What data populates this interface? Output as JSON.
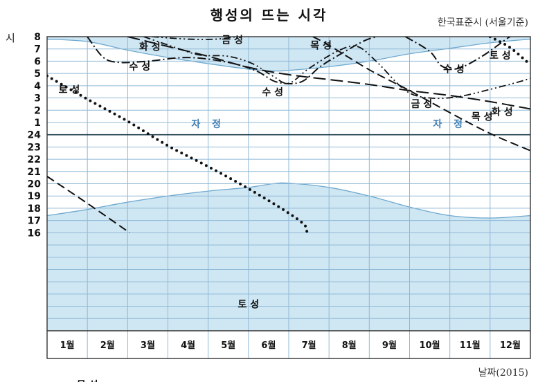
{
  "chart_data": {
    "type": "line",
    "title": "행성의 뜨는 시각",
    "subtitle": "한국표준시 (서울기준)",
    "xlabel": "날짜(2015)",
    "ylabel": "시",
    "x_categories": [
      "1월",
      "2월",
      "3월",
      "4월",
      "5월",
      "6월",
      "7월",
      "8월",
      "9월",
      "10월",
      "11월",
      "12월"
    ],
    "y_ticks": [
      "8",
      "7",
      "6",
      "5",
      "4",
      "3",
      "2",
      "1",
      "24",
      "23",
      "22",
      "21",
      "20",
      "19",
      "18",
      "17",
      "16"
    ],
    "xlim": [
      0,
      12
    ],
    "ylim_hours_from_top": [
      8,
      -16
    ],
    "grid": true,
    "colors": {
      "twilight_fill": "#cfe6f3",
      "twilight_edge": "#6ea9cf",
      "grid": "#8fb9d6",
      "midnight": "#1a3a4a",
      "curves": "#111111"
    },
    "regions": [
      {
        "label": "자 정",
        "positions": [
          4,
          10
        ],
        "y": 0.6
      }
    ],
    "twilight_bands": {
      "morning_edge": [
        [
          0,
          7.8
        ],
        [
          1,
          7.6
        ],
        [
          2,
          6.9
        ],
        [
          3,
          6.3
        ],
        [
          4,
          5.8
        ],
        [
          5,
          5.35
        ],
        [
          5.6,
          5.2
        ],
        [
          6,
          5.25
        ],
        [
          7,
          5.55
        ],
        [
          8,
          6.0
        ],
        [
          9,
          6.6
        ],
        [
          10,
          7.05
        ],
        [
          11,
          7.5
        ],
        [
          12,
          7.8
        ]
      ],
      "evening_edge": [
        [
          0,
          -6.6
        ],
        [
          1,
          -6.1
        ],
        [
          2,
          -5.5
        ],
        [
          3,
          -5.0
        ],
        [
          4,
          -4.6
        ],
        [
          5,
          -4.3
        ],
        [
          5.6,
          -4.0
        ],
        [
          6,
          -3.95
        ],
        [
          7,
          -4.3
        ],
        [
          8,
          -5.0
        ],
        [
          9,
          -5.9
        ],
        [
          10,
          -6.6
        ],
        [
          11,
          -6.8
        ],
        [
          12,
          -6.6
        ]
      ]
    },
    "series": [
      {
        "name": "수성",
        "style": "dash-dot",
        "labels": [
          {
            "text": "수 성",
            "x": 2.3,
            "y": 5.3
          },
          {
            "text": "수 성",
            "x": 5.6,
            "y": 3.2
          },
          {
            "text": "수 성",
            "x": 10.1,
            "y": 5.1
          }
        ],
        "points": [
          [
            1.0,
            8.0
          ],
          [
            1.4,
            6.3
          ],
          [
            1.8,
            5.9
          ],
          [
            2.5,
            6.0
          ],
          [
            3.5,
            6.3
          ],
          [
            4.5,
            5.9
          ],
          [
            5.2,
            5.2
          ],
          [
            5.7,
            4.3
          ],
          [
            6.3,
            4.3
          ],
          [
            6.8,
            5.6
          ],
          [
            7.4,
            6.8
          ],
          [
            7.9,
            7.7
          ],
          [
            8.2,
            8.0
          ]
        ],
        "points2": [
          [
            8.9,
            8.0
          ],
          [
            9.5,
            6.8
          ],
          [
            9.8,
            5.6
          ],
          [
            10.2,
            5.4
          ],
          [
            10.8,
            6.4
          ],
          [
            11.4,
            7.8
          ],
          [
            11.5,
            8.0
          ]
        ]
      },
      {
        "name": "금성",
        "style": "dash-dot-dot",
        "labels": [
          {
            "text": "금 성",
            "x": 4.6,
            "y": 7.45
          },
          {
            "text": "금 성",
            "x": 9.3,
            "y": 2.25
          }
        ],
        "points": [
          [
            2.6,
            8.0
          ],
          [
            3.5,
            7.8
          ],
          [
            4.2,
            7.8
          ],
          [
            4.7,
            8.0
          ]
        ],
        "points2": [
          [
            2.4,
            8.0
          ],
          [
            3.2,
            7.1
          ],
          [
            3.8,
            6.5
          ],
          [
            4.5,
            6.4
          ],
          [
            5.1,
            5.8
          ],
          [
            5.6,
            4.8
          ],
          [
            6.0,
            4.2
          ],
          [
            6.5,
            5.4
          ],
          [
            7.2,
            6.8
          ],
          [
            7.7,
            7.2
          ],
          [
            8.2,
            5.9
          ],
          [
            8.9,
            3.6
          ],
          [
            9.5,
            3.0
          ],
          [
            10.2,
            3.1
          ],
          [
            11.0,
            3.7
          ],
          [
            11.7,
            4.3
          ],
          [
            12,
            4.6
          ]
        ]
      },
      {
        "name": "화성",
        "style": "long-dash",
        "labels": [
          {
            "text": "화 성",
            "x": 2.55,
            "y": 6.9
          },
          {
            "text": "화 성",
            "x": 11.3,
            "y": 1.6
          }
        ],
        "points": [
          [
            2.0,
            8.0
          ],
          [
            3.0,
            7.2
          ],
          [
            4.0,
            6.4
          ],
          [
            5.0,
            5.5
          ],
          [
            6.0,
            4.9
          ],
          [
            7.0,
            4.5
          ],
          [
            8.0,
            4.1
          ],
          [
            9.0,
            3.6
          ],
          [
            10.0,
            3.2
          ],
          [
            11.0,
            2.7
          ],
          [
            12.0,
            2.1
          ]
        ]
      },
      {
        "name": "목성",
        "style": "dash",
        "labels": [
          {
            "text": "목 성",
            "x": 6.8,
            "y": 7.0
          },
          {
            "text": "목 성",
            "x": 1.0,
            "y": -20.7
          },
          {
            "text": "목 성",
            "x": 10.8,
            "y": 1.2
          }
        ],
        "points": [
          [
            6.6,
            8.0
          ],
          [
            7.0,
            7.3
          ],
          [
            8.0,
            5.3
          ],
          [
            9.0,
            3.6
          ],
          [
            10.0,
            1.8
          ],
          [
            11.0,
            0.1
          ],
          [
            12.0,
            -1.3
          ]
        ],
        "points2": [
          [
            0,
            -3.4
          ],
          [
            1.0,
            -5.6
          ],
          [
            2.05,
            -8.0
          ]
        ]
      },
      {
        "name": "토성",
        "style": "dotted",
        "labels": [
          {
            "text": "토 성",
            "x": 0.55,
            "y": 3.4
          },
          {
            "text": "토 성",
            "x": 5.0,
            "y": -14.1
          },
          {
            "text": "토 성",
            "x": 11.25,
            "y": 6.2
          }
        ],
        "points": [
          [
            0,
            4.8
          ],
          [
            1.0,
            2.9
          ],
          [
            2.0,
            1.1
          ],
          [
            3.0,
            -0.9
          ],
          [
            4.0,
            -2.6
          ],
          [
            5.0,
            -4.4
          ],
          [
            6.0,
            -6.4
          ],
          [
            6.4,
            -7.4
          ],
          [
            6.45,
            -8.0
          ]
        ],
        "points2": [
          [
            11.0,
            8.0
          ],
          [
            11.5,
            7.1
          ],
          [
            12.0,
            5.7
          ]
        ]
      }
    ]
  }
}
